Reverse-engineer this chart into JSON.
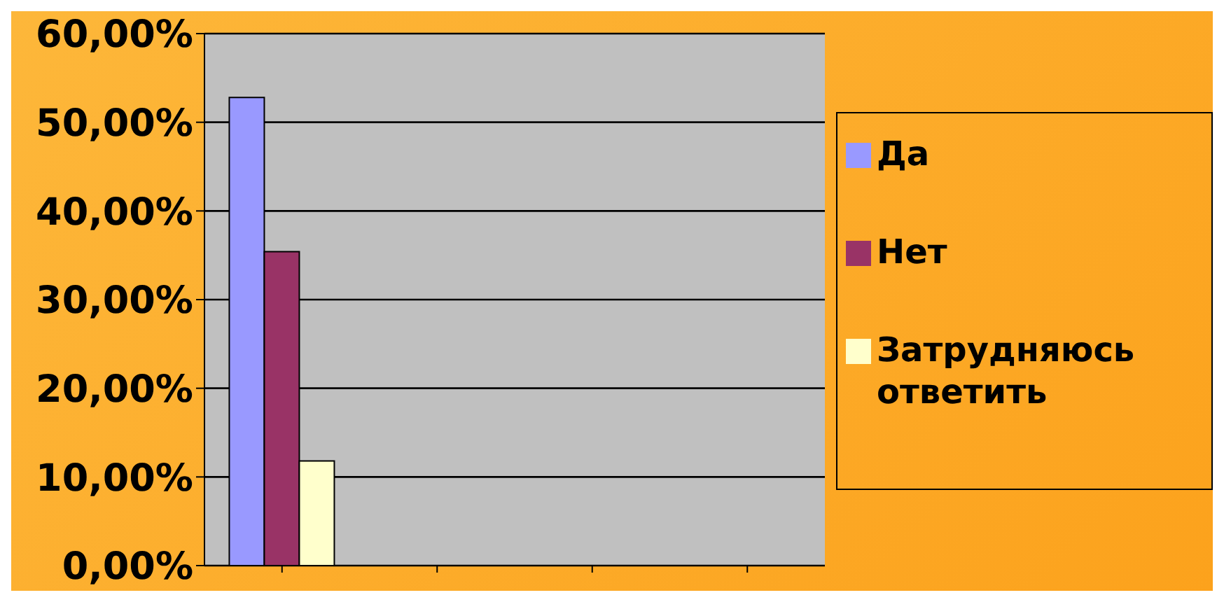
{
  "chart_data": {
    "type": "bar",
    "categories": [
      null,
      null,
      null,
      null
    ],
    "series": [
      {
        "name": "Да",
        "color": "#9999ff",
        "values": [
          52.8,
          null,
          null,
          null
        ]
      },
      {
        "name": "Нет",
        "color": "#993366",
        "values": [
          35.4,
          null,
          null,
          null
        ]
      },
      {
        "name": "Затрудняюсь ответить",
        "color": "#ffffcc",
        "values": [
          11.8,
          null,
          null,
          null
        ]
      }
    ],
    "ylim": [
      0,
      60
    ],
    "yticks": [
      {
        "value": 0,
        "label": "0,00%"
      },
      {
        "value": 10,
        "label": "10,00%"
      },
      {
        "value": 20,
        "label": "20,00%"
      },
      {
        "value": 30,
        "label": "30,00%"
      },
      {
        "value": 40,
        "label": "40,00%"
      },
      {
        "value": 50,
        "label": "50,00%"
      },
      {
        "value": 60,
        "label": "60,00%"
      }
    ],
    "grid": "y",
    "legend": "right"
  }
}
